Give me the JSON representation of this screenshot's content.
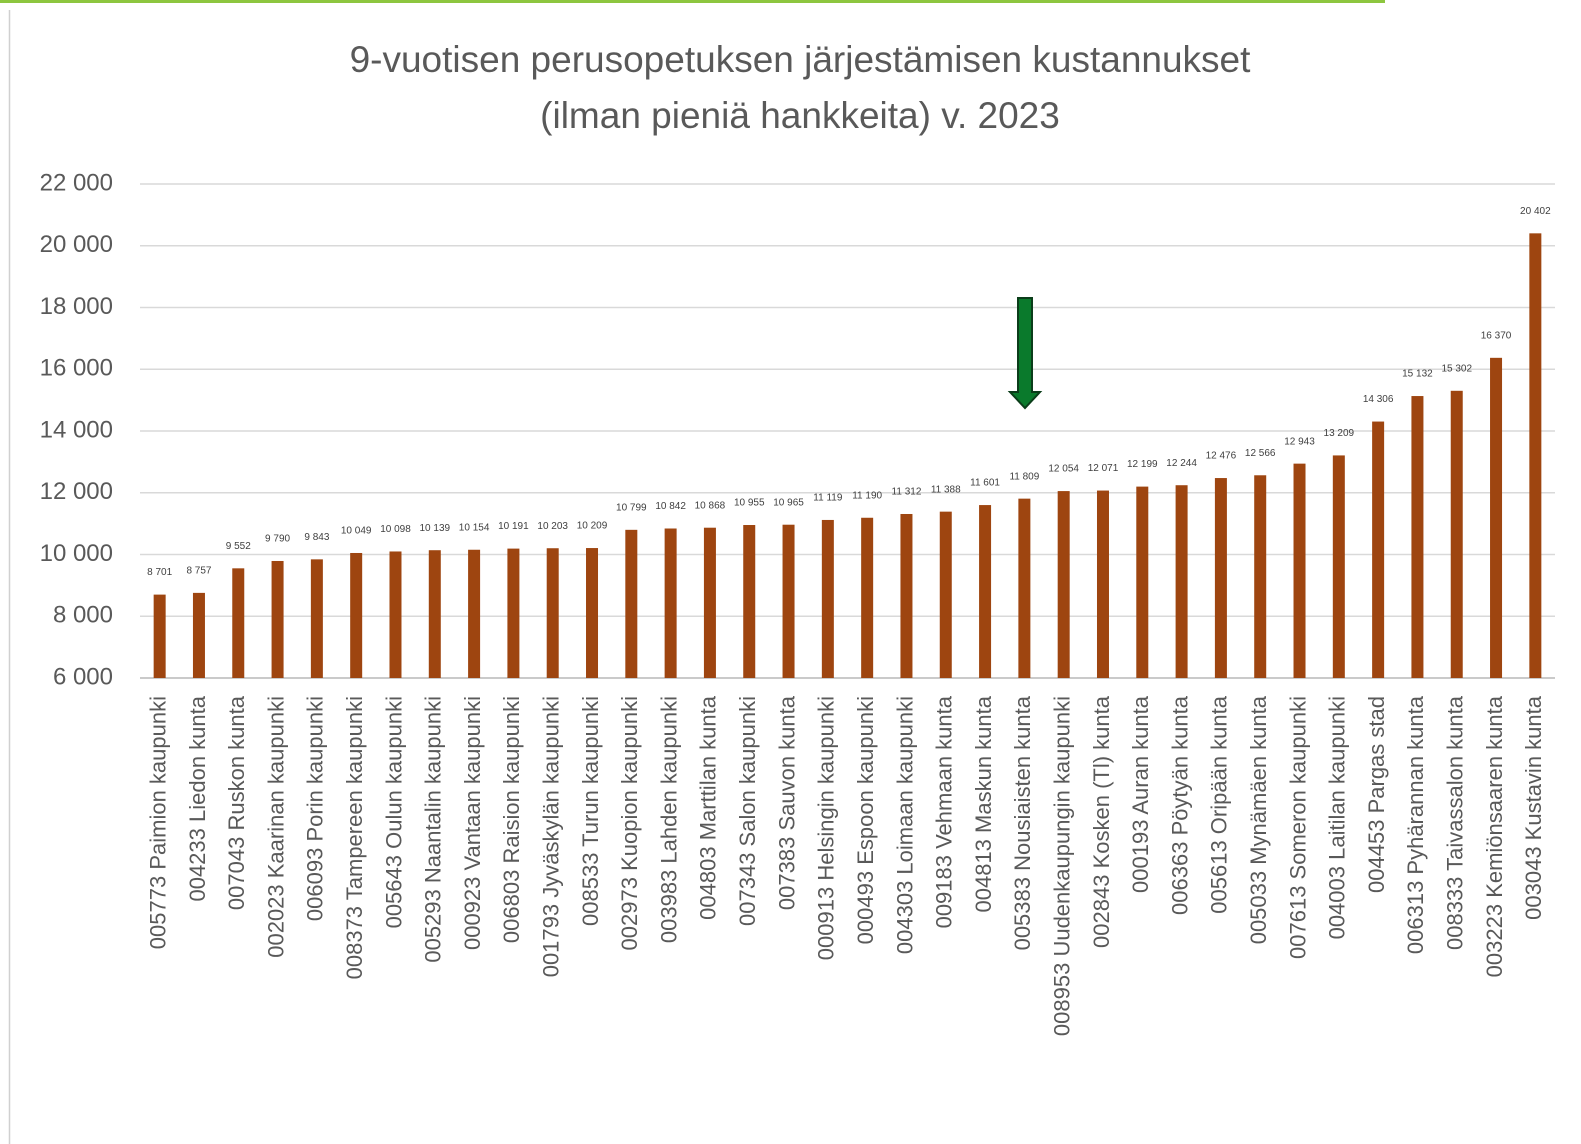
{
  "chart_data": {
    "type": "bar",
    "title": [
      "9-vuotisen perusopetuksen järjestämisen kustannukset",
      "(ilman pieniä hankkeita) v. 2023"
    ],
    "categories": [
      "005773 Paimion kaupunki",
      "004233 Liedon kunta",
      "007043 Ruskon kunta",
      "002023 Kaarinan kaupunki",
      "006093 Porin kaupunki",
      "008373 Tampereen kaupunki",
      "005643 Oulun kaupunki",
      "005293 Naantalin kaupunki",
      "000923 Vantaan kaupunki",
      "006803 Raision kaupunki",
      "001793 Jyväskylän kaupunki",
      "008533 Turun kaupunki",
      "002973 Kuopion kaupunki",
      "003983 Lahden kaupunki",
      "004803 Marttilan kunta",
      "007343 Salon kaupunki",
      "007383 Sauvon kunta",
      "000913 Helsingin kaupunki",
      "000493 Espoon kaupunki",
      "004303 Loimaan kaupunki",
      "009183 Vehmaan kunta",
      "004813 Maskun kunta",
      "005383 Nousiaisten kunta",
      "008953 Uudenkaupungin kaupunki",
      "002843 Kosken (Tl) kunta",
      "000193 Auran kunta",
      "006363 Pöytyän kunta",
      "005613 Oripään kunta",
      "005033 Mynämäen kunta",
      "007613 Someron kaupunki",
      "004003 Laitilan kaupunki",
      "004453 Pargas stad",
      "006313 Pyhärannan kunta",
      "008333 Taivassalon kunta",
      "003223 Kemiönsaaren kunta",
      "003043 Kustavin kunta"
    ],
    "values": [
      8701,
      8757,
      9552,
      9790,
      9843,
      10049,
      10098,
      10139,
      10154,
      10191,
      10203,
      10209,
      10799,
      10842,
      10868,
      10955,
      10965,
      11119,
      11190,
      11312,
      11388,
      11601,
      11809,
      12054,
      12071,
      12199,
      12244,
      12476,
      12566,
      12943,
      13209,
      14306,
      15132,
      15302,
      16370,
      20402
    ],
    "value_labels": [
      "8 701",
      "8 757",
      "9 552",
      "9 790",
      "9 843",
      "10 049",
      "10 098",
      "10 139",
      "10 154",
      "10 191",
      "10 203",
      "10 209",
      "10 799",
      "10 842",
      "10 868",
      "10 955",
      "10 965",
      "11 119",
      "11 190",
      "11 312",
      "11 388",
      "11 601",
      "11 809",
      "12 054",
      "12 071",
      "12 199",
      "12 244",
      "12 476",
      "12 566",
      "12 943",
      "13 209",
      "14 306",
      "15 132",
      "15 302",
      "16 370",
      "20 402"
    ],
    "color": "#9e4510",
    "ylim": [
      6000,
      22000
    ],
    "yticks": [
      {
        "value": 6000,
        "label": "6 000"
      },
      {
        "value": 8000,
        "label": "8 000"
      },
      {
        "value": 10000,
        "label": "10 000"
      },
      {
        "value": 12000,
        "label": "12 000"
      },
      {
        "value": 14000,
        "label": "14 000"
      },
      {
        "value": 16000,
        "label": "16 000"
      },
      {
        "value": 18000,
        "label": "18 000"
      },
      {
        "value": 20000,
        "label": "20 000"
      },
      {
        "value": 22000,
        "label": "22 000"
      }
    ],
    "grid": true
  }
}
